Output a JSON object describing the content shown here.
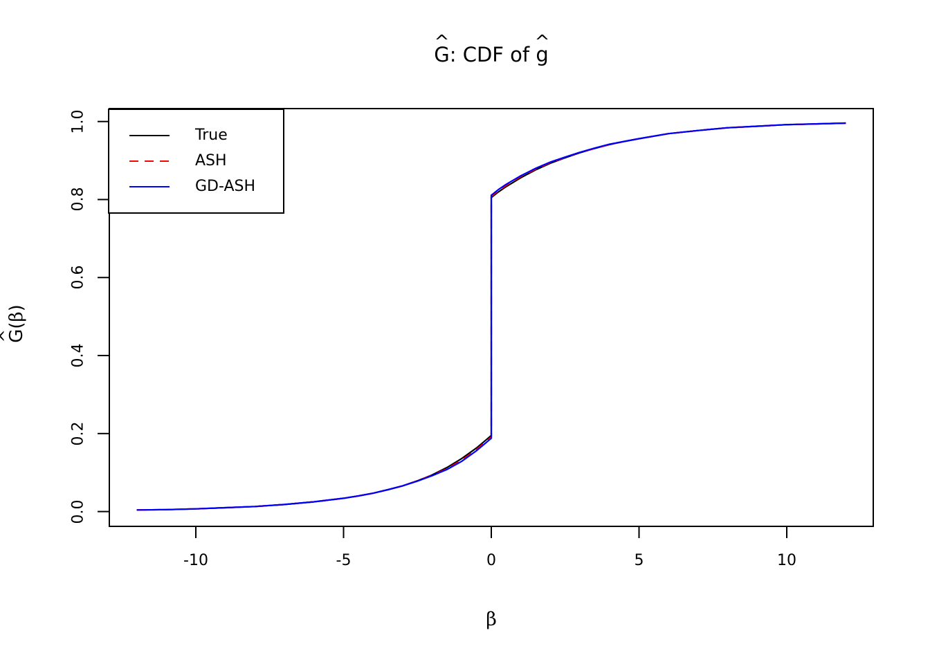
{
  "title": {
    "parts": [
      {
        "t": "G",
        "hat": true
      },
      {
        "t": ": CDF of "
      },
      {
        "t": "g",
        "hat": true
      }
    ],
    "plain": "Ĝ: CDF of ĝ"
  },
  "axes": {
    "x": {
      "label_parts": [
        {
          "t": "β",
          "beta": true
        }
      ],
      "label_plain": "β",
      "ticks": [
        {
          "v": -10,
          "label": "-10"
        },
        {
          "v": -5,
          "label": "-5"
        },
        {
          "v": 0,
          "label": "0"
        },
        {
          "v": 5,
          "label": "5"
        },
        {
          "v": 10,
          "label": "10"
        }
      ]
    },
    "y": {
      "label_parts": [
        {
          "t": "G",
          "hat": true
        },
        {
          "t": "("
        },
        {
          "t": "β",
          "beta": true
        },
        {
          "t": ")"
        }
      ],
      "label_plain": "Ĝ(β)",
      "ticks": [
        {
          "v": 0.0,
          "label": "0.0"
        },
        {
          "v": 0.2,
          "label": "0.2"
        },
        {
          "v": 0.4,
          "label": "0.4"
        },
        {
          "v": 0.6,
          "label": "0.6"
        },
        {
          "v": 0.8,
          "label": "0.8"
        },
        {
          "v": 1.0,
          "label": "1.0"
        }
      ]
    }
  },
  "legend": {
    "position": "top-left",
    "entries": [
      {
        "label": "True",
        "color": "#000000",
        "dash": "solid"
      },
      {
        "label": "ASH",
        "color": "#ff0000",
        "dash": "dashed"
      },
      {
        "label": "GD-ASH",
        "color": "#0000ff",
        "dash": "solid"
      }
    ]
  },
  "chart_data": {
    "type": "line",
    "title": "Ĝ: CDF of ĝ",
    "xlabel": "β",
    "ylabel": "Ĝ(β)",
    "xlim": [
      -12.96,
      12.96
    ],
    "ylim": [
      -0.04,
      1.04
    ],
    "x_ticks": [
      -10,
      -5,
      0,
      5,
      10
    ],
    "y_ticks": [
      0.0,
      0.2,
      0.4,
      0.6,
      0.8,
      1.0
    ],
    "grid": false,
    "legend_position": "top-left",
    "jump_at": 0,
    "jump_from": 0.195,
    "jump_to": 0.805,
    "series": [
      {
        "name": "True",
        "color": "#000000",
        "style": "solid",
        "width": 2.2,
        "points": [
          [
            -12,
            0.004
          ],
          [
            -11,
            0.005
          ],
          [
            -10,
            0.007
          ],
          [
            -9,
            0.01
          ],
          [
            -8,
            0.013
          ],
          [
            -7,
            0.018
          ],
          [
            -6,
            0.025
          ],
          [
            -5,
            0.034
          ],
          [
            -4.5,
            0.04
          ],
          [
            -4,
            0.047
          ],
          [
            -3.5,
            0.056
          ],
          [
            -3,
            0.066
          ],
          [
            -2.5,
            0.079
          ],
          [
            -2,
            0.094
          ],
          [
            -1.5,
            0.113
          ],
          [
            -1,
            0.136
          ],
          [
            -0.5,
            0.163
          ],
          [
            -0.25,
            0.179
          ],
          [
            0,
            0.195
          ],
          [
            0,
            0.805
          ],
          [
            0.25,
            0.82
          ],
          [
            0.5,
            0.833
          ],
          [
            1,
            0.856
          ],
          [
            1.5,
            0.876
          ],
          [
            2,
            0.893
          ],
          [
            2.5,
            0.907
          ],
          [
            3,
            0.92
          ],
          [
            3.5,
            0.931
          ],
          [
            4,
            0.941
          ],
          [
            4.5,
            0.949
          ],
          [
            5,
            0.956
          ],
          [
            6,
            0.969
          ],
          [
            7,
            0.977
          ],
          [
            8,
            0.984
          ],
          [
            9,
            0.988
          ],
          [
            10,
            0.992
          ],
          [
            11,
            0.994
          ],
          [
            12,
            0.996
          ]
        ]
      },
      {
        "name": "ASH",
        "color": "#ff0000",
        "style": "dashed",
        "width": 2.2,
        "points": [
          [
            -12,
            0.004
          ],
          [
            -11,
            0.005
          ],
          [
            -10,
            0.007
          ],
          [
            -9,
            0.01
          ],
          [
            -8,
            0.013
          ],
          [
            -7,
            0.018
          ],
          [
            -6,
            0.025
          ],
          [
            -5,
            0.034
          ],
          [
            -4.5,
            0.04
          ],
          [
            -4,
            0.047
          ],
          [
            -3.5,
            0.056
          ],
          [
            -3,
            0.066
          ],
          [
            -2.5,
            0.079
          ],
          [
            -2,
            0.093
          ],
          [
            -1.5,
            0.11
          ],
          [
            -1,
            0.132
          ],
          [
            -0.5,
            0.159
          ],
          [
            -0.25,
            0.175
          ],
          [
            0,
            0.191
          ],
          [
            0,
            0.808
          ],
          [
            0.25,
            0.823
          ],
          [
            0.5,
            0.836
          ],
          [
            1,
            0.859
          ],
          [
            1.5,
            0.878
          ],
          [
            2,
            0.895
          ],
          [
            2.5,
            0.908
          ],
          [
            3,
            0.921
          ],
          [
            3.5,
            0.931
          ],
          [
            4,
            0.941
          ],
          [
            4.5,
            0.949
          ],
          [
            5,
            0.956
          ],
          [
            6,
            0.969
          ],
          [
            7,
            0.977
          ],
          [
            8,
            0.984
          ],
          [
            9,
            0.988
          ],
          [
            10,
            0.992
          ],
          [
            11,
            0.994
          ],
          [
            12,
            0.996
          ]
        ]
      },
      {
        "name": "GD-ASH",
        "color": "#0000ff",
        "style": "solid",
        "width": 2.2,
        "points": [
          [
            -12,
            0.004
          ],
          [
            -11,
            0.005
          ],
          [
            -10,
            0.007
          ],
          [
            -9,
            0.01
          ],
          [
            -8,
            0.013
          ],
          [
            -7,
            0.018
          ],
          [
            -6,
            0.025
          ],
          [
            -5,
            0.034
          ],
          [
            -4.5,
            0.04
          ],
          [
            -4,
            0.047
          ],
          [
            -3.5,
            0.056
          ],
          [
            -3,
            0.066
          ],
          [
            -2.5,
            0.078
          ],
          [
            -2,
            0.092
          ],
          [
            -1.5,
            0.108
          ],
          [
            -1,
            0.129
          ],
          [
            -0.5,
            0.156
          ],
          [
            -0.25,
            0.172
          ],
          [
            0,
            0.188
          ],
          [
            0,
            0.811
          ],
          [
            0.25,
            0.826
          ],
          [
            0.5,
            0.839
          ],
          [
            1,
            0.861
          ],
          [
            1.5,
            0.88
          ],
          [
            2,
            0.896
          ],
          [
            2.5,
            0.909
          ],
          [
            3,
            0.921
          ],
          [
            3.5,
            0.932
          ],
          [
            4,
            0.942
          ],
          [
            4.5,
            0.949
          ],
          [
            5,
            0.956
          ],
          [
            6,
            0.969
          ],
          [
            7,
            0.977
          ],
          [
            8,
            0.984
          ],
          [
            9,
            0.988
          ],
          [
            10,
            0.992
          ],
          [
            11,
            0.994
          ],
          [
            12,
            0.996
          ]
        ]
      }
    ]
  }
}
